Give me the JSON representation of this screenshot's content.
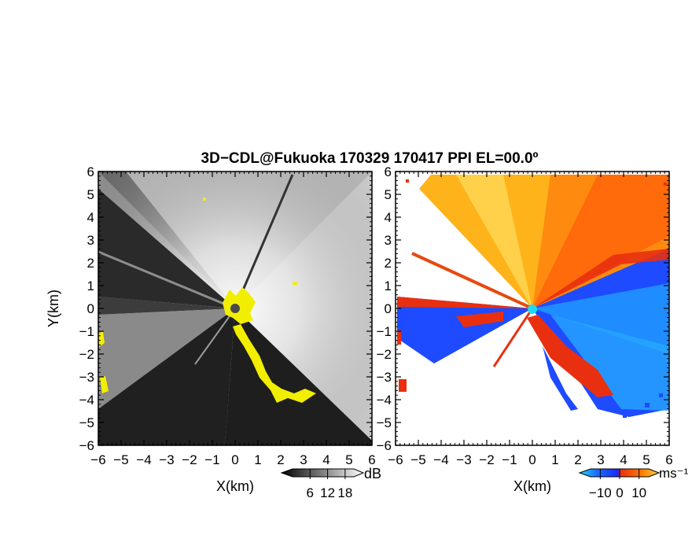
{
  "title": "3D−CDL@Fukuoka 170329 170417 PPI EL=00.0º",
  "panels": [
    {
      "id": "reflectivity",
      "xlabel": "X(km)",
      "ylabel": "Y(km)",
      "colorbar": {
        "unit": "dB",
        "ticks": [
          "6",
          "12",
          "18"
        ],
        "tick_values": [
          6,
          12,
          18
        ],
        "range": [
          0,
          21
        ],
        "colormap": "grayscale",
        "colors": [
          "#000000",
          "#ffffff"
        ],
        "clutter_color": "#f2ee00"
      }
    },
    {
      "id": "doppler-velocity",
      "xlabel": "X(km)",
      "ylabel": "",
      "colorbar": {
        "unit": "ms⁻¹",
        "ticks": [
          "−10",
          "0",
          "10"
        ],
        "tick_values": [
          -10,
          0,
          10
        ],
        "range": [
          -15,
          15
        ],
        "colormap": "blue-cyan / red-orange-yellow",
        "colors": [
          "#22d8f0",
          "#1a6cff",
          "#1a2cff",
          "#e83010",
          "#ff7a00",
          "#ffd23a"
        ]
      }
    }
  ],
  "chart_data": [
    {
      "type": "heatmap",
      "panel": "reflectivity",
      "title": "3D−CDL@Fukuoka 170329 170417 PPI EL=00.0º",
      "xlabel": "X(km)",
      "ylabel": "Y(km)",
      "xlim": [
        -6,
        6
      ],
      "ylim": [
        -6,
        6
      ],
      "xticks": [
        -6,
        -5,
        -4,
        -3,
        -2,
        -1,
        0,
        1,
        2,
        3,
        4,
        5,
        6
      ],
      "yticks": [
        -6,
        -5,
        -4,
        -3,
        -2,
        -1,
        0,
        1,
        2,
        3,
        4,
        5,
        6
      ],
      "x_tick_labels": [
        "−6",
        "−5",
        "−4",
        "−3",
        "−2",
        "−1",
        "0",
        "1",
        "2",
        "3",
        "4",
        "5",
        "6"
      ],
      "y_tick_labels": [
        "−6",
        "−5",
        "−4",
        "−3",
        "−2",
        "−1",
        "0",
        "1",
        "2",
        "3",
        "4",
        "5",
        "6"
      ],
      "colorbar_unit": "dB",
      "colorbar_ticks": [
        6,
        12,
        18
      ]
    },
    {
      "type": "heatmap",
      "panel": "doppler-velocity",
      "xlabel": "X(km)",
      "xlim": [
        -6,
        6
      ],
      "ylim": [
        -6,
        6
      ],
      "xticks": [
        -6,
        -5,
        -4,
        -3,
        -2,
        -1,
        0,
        1,
        2,
        3,
        4,
        5,
        6
      ],
      "yticks": [
        -6,
        -5,
        -4,
        -3,
        -2,
        -1,
        0,
        1,
        2,
        3,
        4,
        5,
        6
      ],
      "x_tick_labels": [
        "−6",
        "−5",
        "−4",
        "−3",
        "−2",
        "−1",
        "0",
        "1",
        "2",
        "3",
        "4",
        "5",
        "6"
      ],
      "y_tick_labels": [
        "−6",
        "−5",
        "−4",
        "−3",
        "−2",
        "−1",
        "0",
        "1",
        "2",
        "3",
        "4",
        "5",
        "6"
      ],
      "colorbar_unit": "ms⁻¹",
      "colorbar_ticks": [
        -10,
        0,
        10
      ]
    }
  ]
}
